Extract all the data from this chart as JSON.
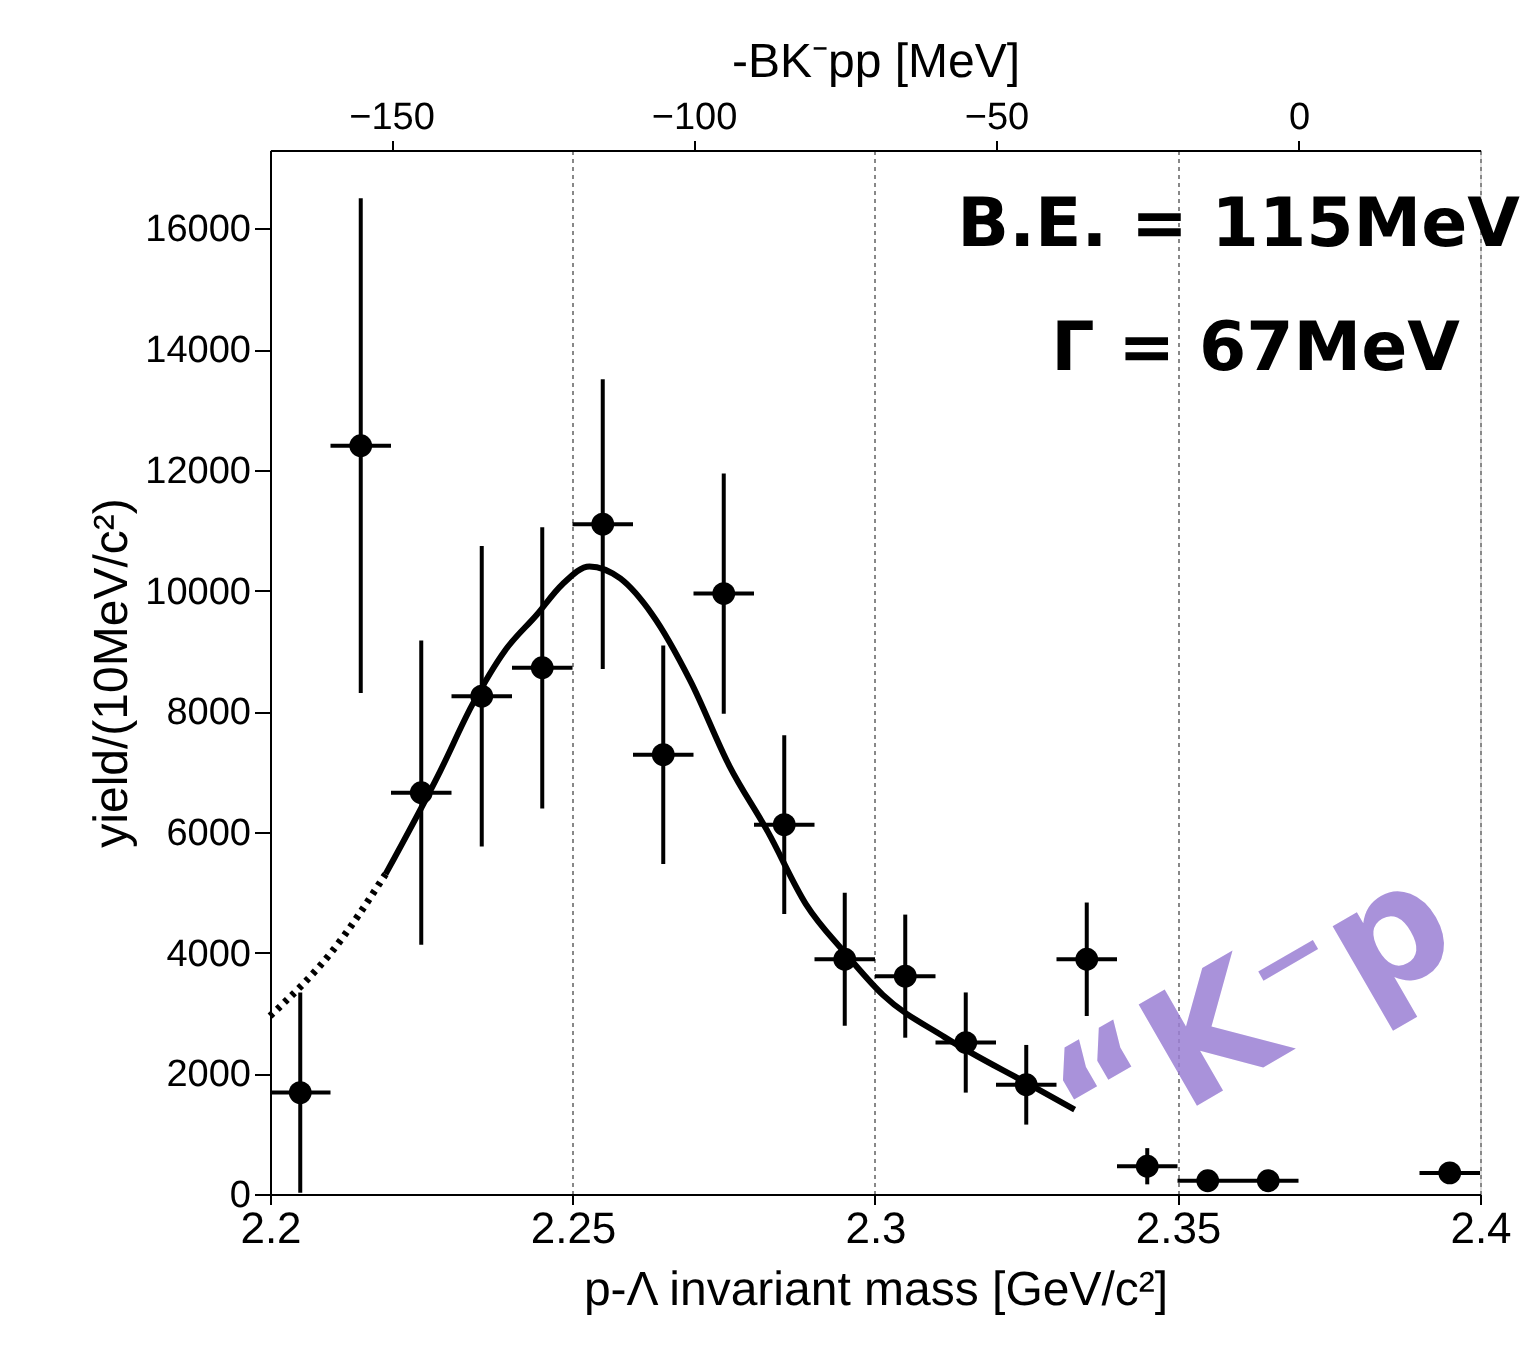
{
  "chart_data": {
    "type": "scatter",
    "xlabel": "p-Λ invariant mass [GeV/c²]",
    "ylabel": "yield/(10MeV/c²)",
    "x2label": "-BK⁻pp [MeV]",
    "xlim": [
      2.2,
      2.4
    ],
    "xticks": [
      2.2,
      2.25,
      2.3,
      2.35,
      2.4
    ],
    "x2lim": [
      -170,
      30
    ],
    "x2ticks": [
      -150,
      -100,
      -50,
      0
    ],
    "ylim": [
      0,
      17300
    ],
    "yticks": [
      0,
      2000,
      4000,
      6000,
      8000,
      10000,
      12000,
      14000,
      16000
    ],
    "grid": "x",
    "series": [
      {
        "color": "#000000",
        "marker": "circle",
        "x": [
          2.205,
          2.215,
          2.225,
          2.235,
          2.245,
          2.255,
          2.265,
          2.275,
          2.285,
          2.295,
          2.305,
          2.315,
          2.325,
          2.335,
          2.345,
          2.355,
          2.365,
          2.375,
          2.385,
          2.395
        ],
        "values": [
          1680,
          12400,
          6650,
          8250,
          8720,
          11100,
          7280,
          9950,
          6120,
          3890,
          3610,
          2510,
          1810,
          3890,
          460,
          220,
          220,
          null,
          null,
          350
        ],
        "errors": [
          1660,
          4100,
          2520,
          2490,
          2330,
          2400,
          1810,
          1990,
          1480,
          1100,
          1020,
          830,
          660,
          940,
          300,
          100,
          100,
          null,
          null,
          150
        ],
        "xerrors": [
          0.005,
          0.005,
          0.005,
          0.005,
          0.005,
          0.005,
          0.005,
          0.005,
          0.005,
          0.005,
          0.005,
          0.005,
          0.005,
          0.005,
          0.005,
          0.005,
          0.005,
          null,
          null,
          0.005
        ]
      },
      {
        "type": "line",
        "color": "#000000",
        "line_style": "dotted",
        "x": [
          2.2,
          2.2016,
          2.2101,
          2.2191
        ],
        "values": [
          2950,
          3100,
          4000,
          5300
        ]
      },
      {
        "type": "line",
        "color": "#000000",
        "line_style": "solid",
        "x": [
          2.2191,
          2.2281,
          2.2334,
          2.2388,
          2.2441,
          2.2483,
          2.2528,
          2.2579,
          2.2632,
          2.2695,
          2.2759,
          2.2823,
          2.2886,
          2.295,
          2.3013,
          2.3115,
          2.3258,
          2.333
        ],
        "values": [
          5300,
          7000,
          8100,
          9000,
          9600,
          10100,
          10400,
          10200,
          9600,
          8500,
          7100,
          6000,
          4800,
          4000,
          3300,
          2600,
          1800,
          1400
        ]
      }
    ],
    "annotations": [
      "B.E. = 115MeV",
      "Γ    = 67MeV",
      "“K⁻p"
    ]
  }
}
